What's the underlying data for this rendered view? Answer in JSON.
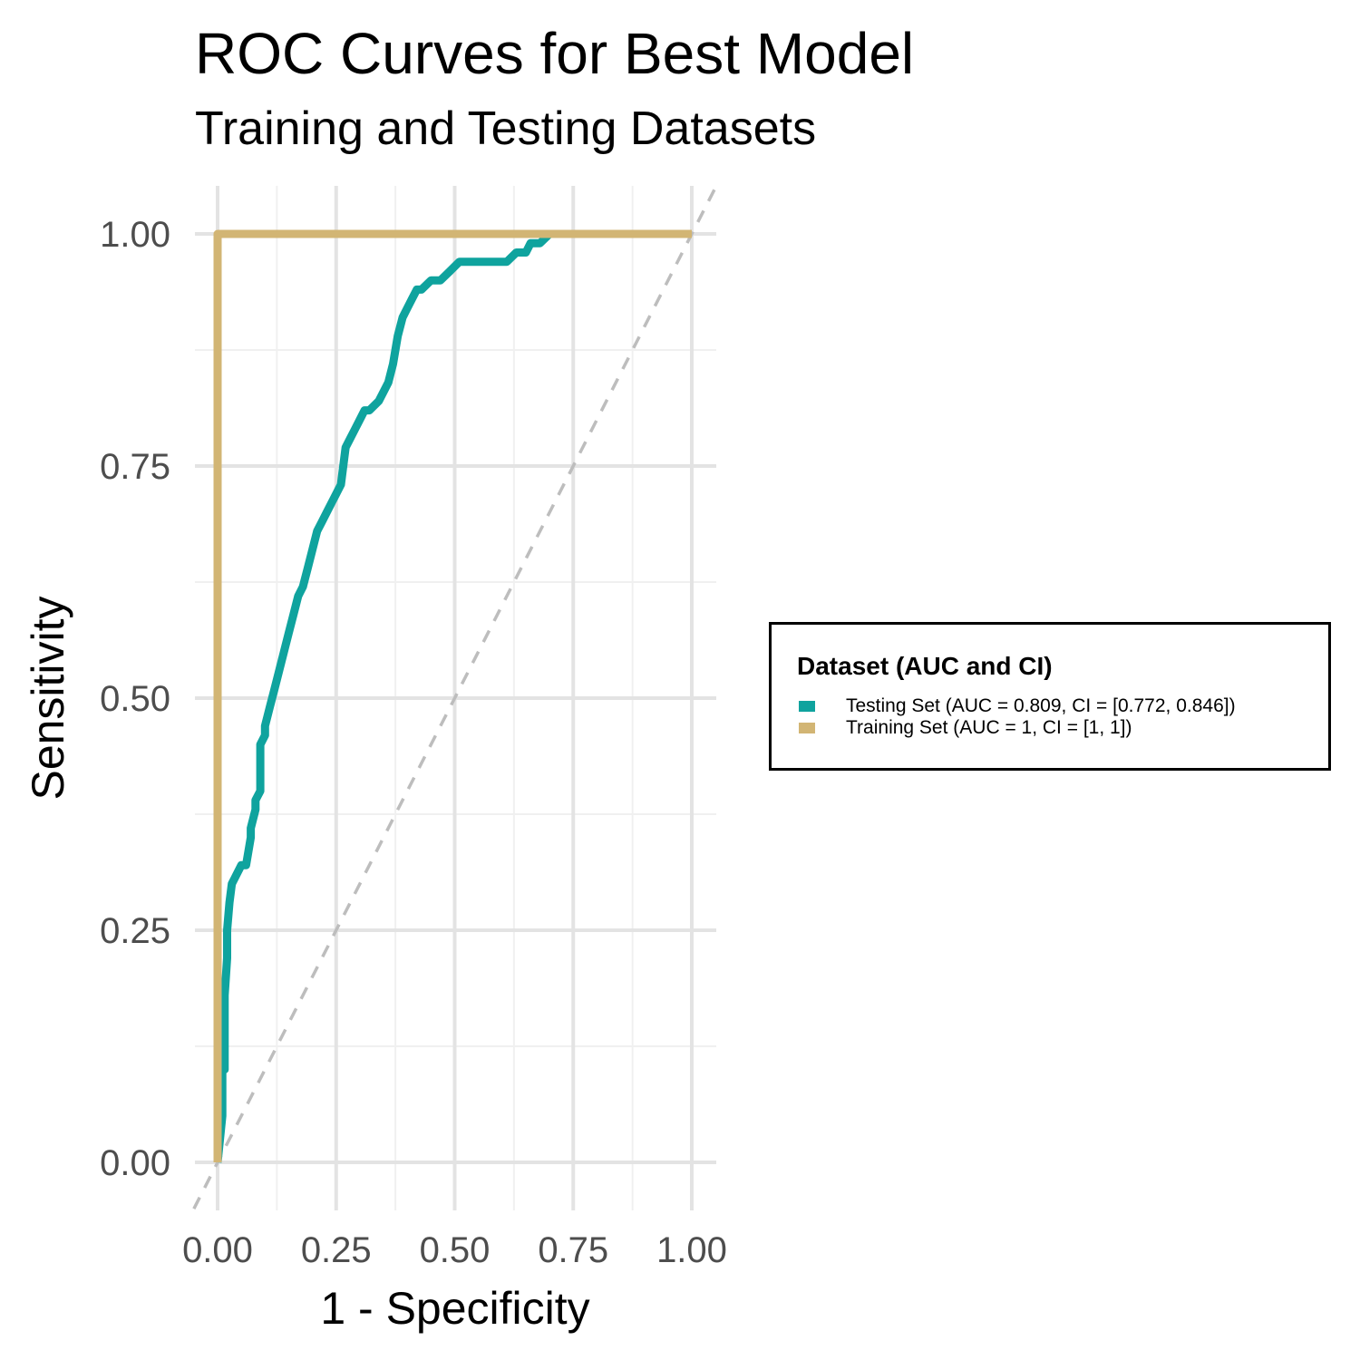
{
  "chart_data": {
    "type": "line",
    "title": "ROC Curves for Best Model",
    "subtitle": "Training and Testing Datasets",
    "xlabel": "1 - Specificity",
    "ylabel": "Sensitivity",
    "xlim": [
      -0.05,
      1.05
    ],
    "ylim": [
      -0.05,
      1.05
    ],
    "x_ticks": [
      "0.00",
      "0.25",
      "0.50",
      "0.75",
      "1.00"
    ],
    "y_ticks": [
      "0.00",
      "0.25",
      "0.50",
      "0.75",
      "1.00"
    ],
    "grid": true,
    "reference_line": {
      "style": "dashed",
      "color": "#bdbdbd",
      "from": [
        0,
        0
      ],
      "to": [
        1,
        1
      ]
    },
    "legend": {
      "title": "Dataset (AUC and CI)",
      "position": "right",
      "entries": [
        "Testing Set (AUC = 0.809, CI = [0.772, 0.846])",
        "Training Set (AUC = 1, CI = [1, 1])"
      ]
    },
    "series": [
      {
        "name": "Testing Set (AUC = 0.809, CI = [0.772, 0.846])",
        "color": "#0fa39e",
        "x": [
          0,
          0.01,
          0.01,
          0.015,
          0.015,
          0.02,
          0.02,
          0.025,
          0.03,
          0.04,
          0.05,
          0.06,
          0.07,
          0.07,
          0.08,
          0.08,
          0.09,
          0.09,
          0.1,
          0.1,
          0.11,
          0.12,
          0.13,
          0.14,
          0.15,
          0.16,
          0.17,
          0.18,
          0.19,
          0.2,
          0.21,
          0.22,
          0.23,
          0.24,
          0.25,
          0.26,
          0.27,
          0.28,
          0.29,
          0.3,
          0.31,
          0.32,
          0.34,
          0.36,
          0.37,
          0.38,
          0.39,
          0.4,
          0.41,
          0.42,
          0.43,
          0.45,
          0.47,
          0.49,
          0.51,
          0.53,
          0.55,
          0.57,
          0.59,
          0.6,
          0.61,
          0.63,
          0.65,
          0.66,
          0.68,
          0.7,
          0.72,
          0.74,
          0.76,
          0.8,
          0.83,
          0.86,
          0.88,
          0.9,
          0.94,
          0.98,
          1.0
        ],
        "y": [
          0,
          0.05,
          0.1,
          0.1,
          0.18,
          0.22,
          0.25,
          0.28,
          0.3,
          0.31,
          0.32,
          0.32,
          0.35,
          0.36,
          0.38,
          0.39,
          0.4,
          0.45,
          0.46,
          0.47,
          0.49,
          0.51,
          0.53,
          0.55,
          0.57,
          0.59,
          0.61,
          0.62,
          0.64,
          0.66,
          0.68,
          0.69,
          0.7,
          0.71,
          0.72,
          0.73,
          0.77,
          0.78,
          0.79,
          0.8,
          0.81,
          0.81,
          0.82,
          0.84,
          0.86,
          0.89,
          0.91,
          0.92,
          0.93,
          0.94,
          0.94,
          0.95,
          0.95,
          0.96,
          0.97,
          0.97,
          0.97,
          0.97,
          0.97,
          0.97,
          0.97,
          0.98,
          0.98,
          0.99,
          0.99,
          1.0,
          1.0,
          1.0,
          1.0,
          1.0,
          1.0,
          1.0,
          1.0,
          1.0,
          1.0,
          1.0,
          1.0
        ]
      },
      {
        "name": "Training Set (AUC = 1, CI = [1, 1])",
        "color": "#d2b574",
        "x": [
          0,
          0,
          1
        ],
        "y": [
          0,
          1,
          1
        ]
      }
    ]
  }
}
